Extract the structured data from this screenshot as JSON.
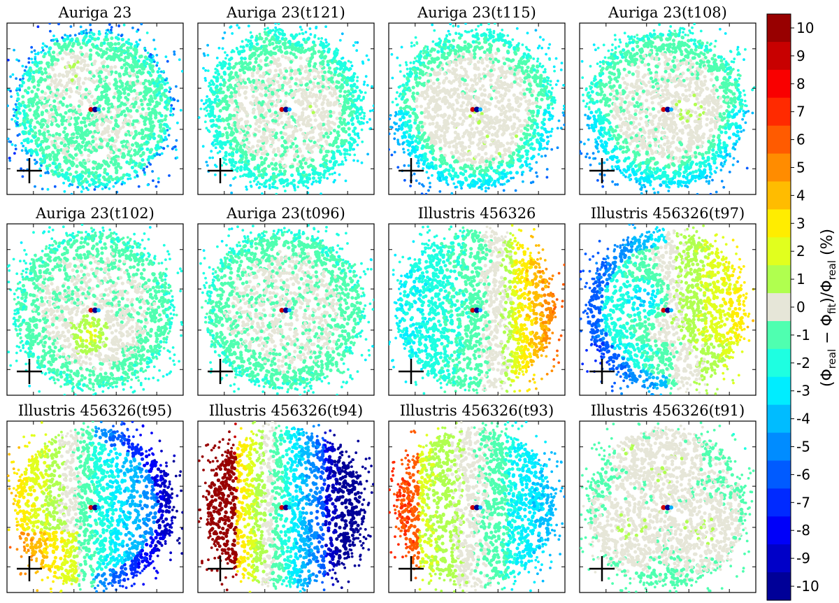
{
  "chart_data": {
    "type": "heatmap",
    "description_free": true,
    "colorbar": {
      "label_parts": [
        "(Φ",
        "real",
        " − Φ",
        "fit",
        ")/Φ",
        "real",
        " (%)"
      ],
      "ticks": [
        10,
        9,
        8,
        7,
        6,
        5,
        4,
        3,
        2,
        1,
        0,
        -1,
        -2,
        -3,
        -4,
        -5,
        -6,
        -7,
        -8,
        -9,
        -10
      ],
      "range": [
        -10.5,
        10.5
      ],
      "colormap": "jet",
      "levels": 21
    },
    "panels": [
      {
        "title": "Auriga 23",
        "pattern": "auriga_base"
      },
      {
        "title": "Auriga 23(t121)",
        "pattern": "auriga_ring"
      },
      {
        "title": "Auriga 23(t115)",
        "pattern": "auriga_ring_warm"
      },
      {
        "title": "Auriga 23(t108)",
        "pattern": "auriga_right_warm"
      },
      {
        "title": "Auriga 23(t102)",
        "pattern": "auriga_lower_warm"
      },
      {
        "title": "Auriga 23(t096)",
        "pattern": "auriga_flat"
      },
      {
        "title": "Illustris 456326",
        "pattern": "ill_right_warm"
      },
      {
        "title": "Illustris 456326(t97)",
        "pattern": "ill_dipole_strong"
      },
      {
        "title": "Illustris 456326(t95)",
        "pattern": "ill_left_hot"
      },
      {
        "title": "Illustris 456326(t94)",
        "pattern": "ill_left_max"
      },
      {
        "title": "Illustris 456326(t93)",
        "pattern": "ill_left_mild"
      },
      {
        "title": "Illustris 456326(t91)",
        "pattern": "ill_quiet"
      }
    ]
  }
}
